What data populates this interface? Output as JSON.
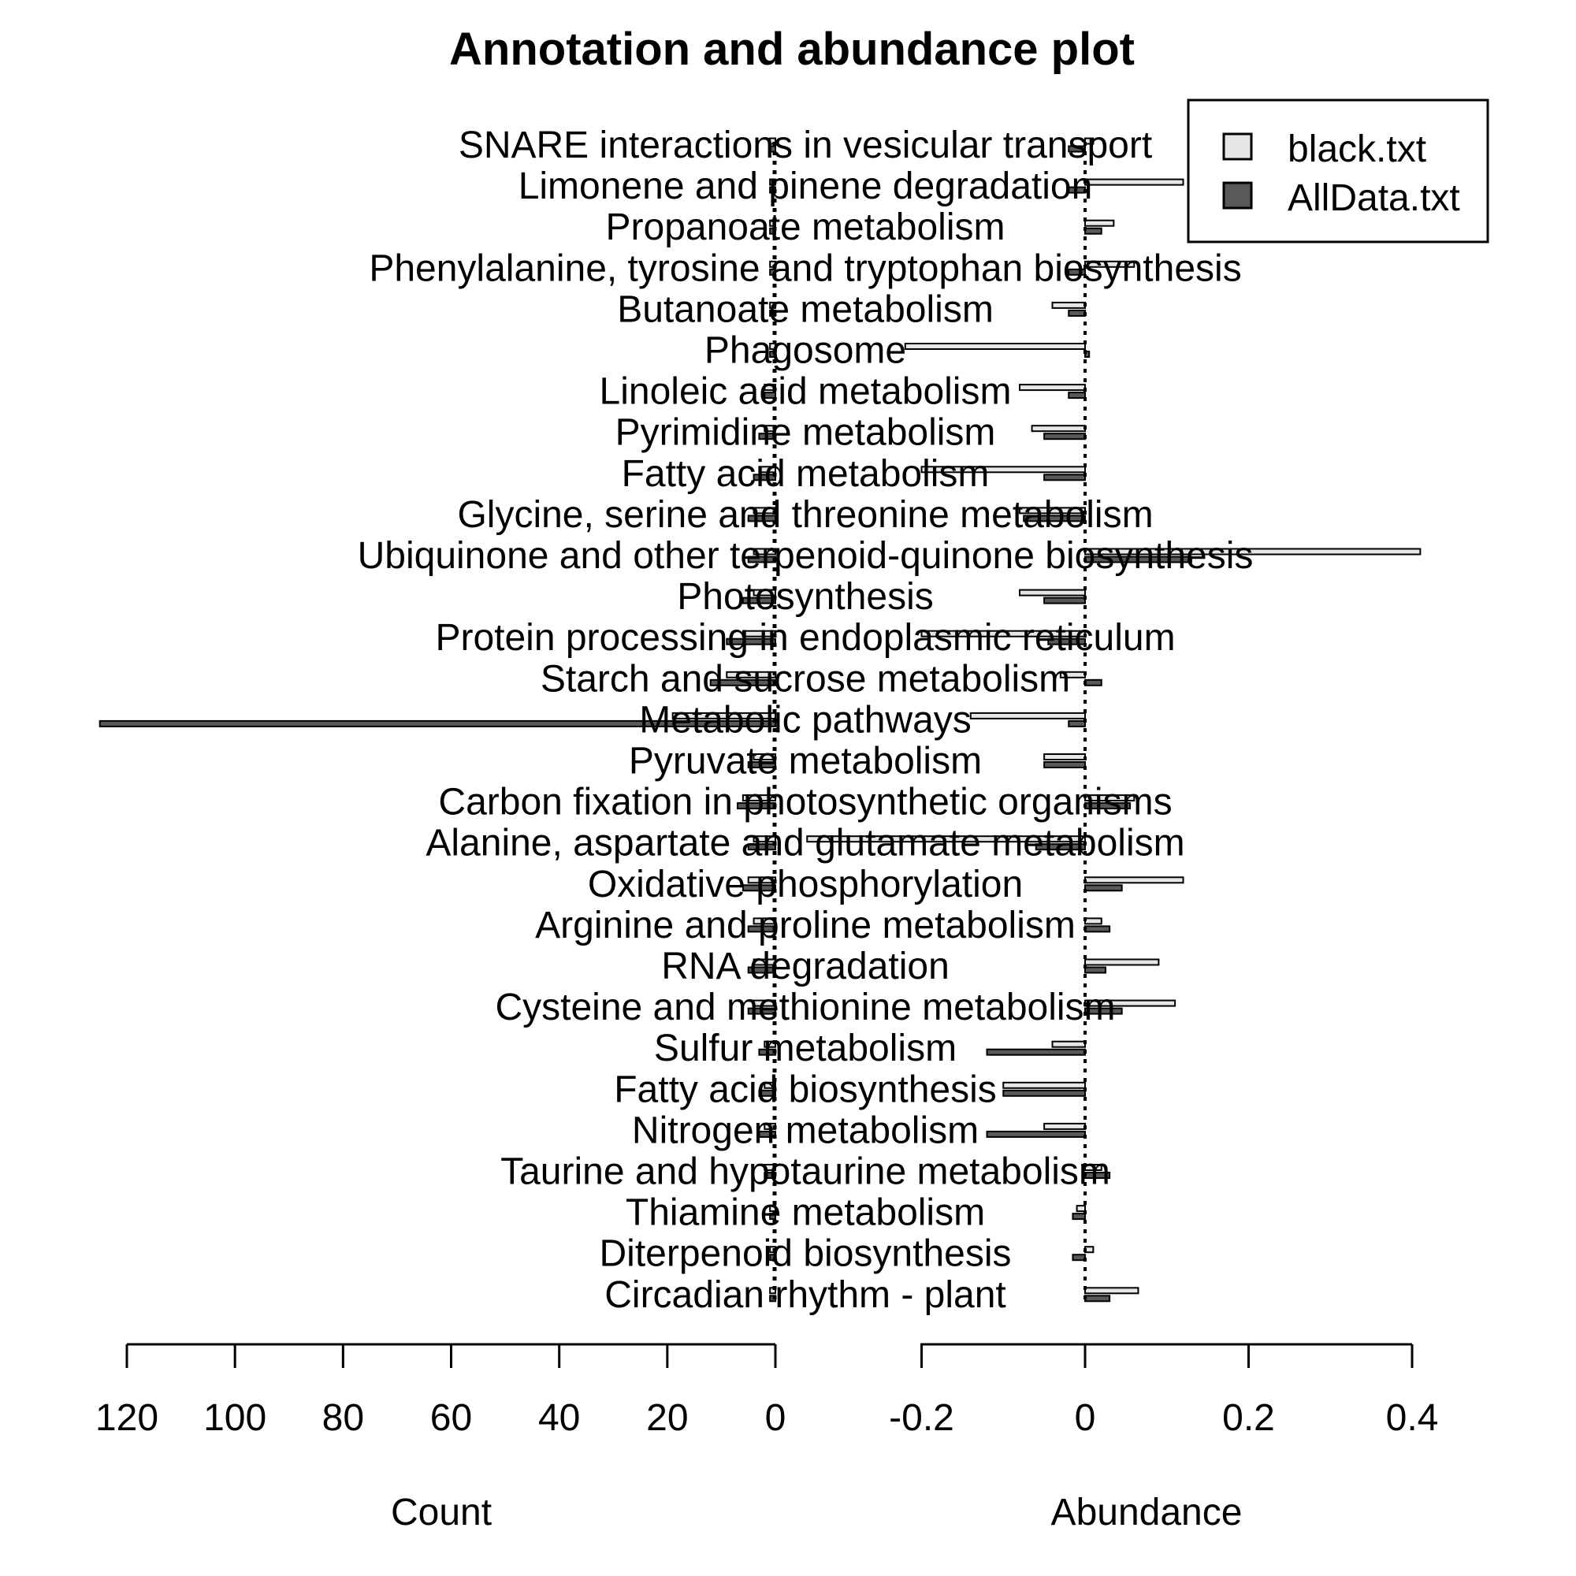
{
  "chart_data": {
    "type": "bar",
    "title": "Annotation and abundance plot",
    "categories": [
      "SNARE interactions in vesicular transport",
      "Limonene and pinene degradation",
      "Propanoate metabolism",
      "Phenylalanine, tyrosine and tryptophan biosynthesis",
      "Butanoate metabolism",
      "Phagosome",
      "Linoleic acid metabolism",
      "Pyrimidine metabolism",
      "Fatty acid metabolism",
      "Glycine, serine and threonine metabolism",
      "Ubiquinone and other terpenoid-quinone biosynthesis",
      "Photosynthesis",
      "Protein processing in endoplasmic reticulum",
      "Starch and sucrose metabolism",
      "Metabolic pathways",
      "Pyruvate metabolism",
      "Carbon fixation in photosynthetic organisms",
      "Alanine, aspartate and glutamate metabolism",
      "Oxidative phosphorylation",
      "Arginine and proline metabolism",
      "RNA degradation",
      "Cysteine and methionine metabolism",
      "Sulfur metabolism",
      "Fatty acid biosynthesis",
      "Nitrogen metabolism",
      "Taurine and hypotaurine metabolism",
      "Thiamine metabolism",
      "Diterpenoid biosynthesis",
      "Circadian rhythm - plant"
    ],
    "series": [
      {
        "name": "black.txt",
        "color": "#e6e6e6",
        "count": [
          1,
          1,
          1,
          1,
          1,
          1,
          2,
          2,
          3,
          4,
          4,
          4,
          6,
          9,
          19,
          4,
          6,
          4,
          5,
          4,
          4,
          4,
          2,
          2,
          2,
          2,
          1,
          1,
          1
        ],
        "abundance": [
          0.01,
          0.12,
          0.035,
          0.06,
          -0.04,
          -0.22,
          -0.08,
          -0.065,
          -0.2,
          -0.08,
          0.41,
          -0.08,
          -0.2,
          -0.03,
          -0.14,
          -0.05,
          0.06,
          -0.34,
          0.12,
          0.02,
          0.09,
          0.11,
          -0.04,
          -0.1,
          -0.05,
          0.02,
          -0.01,
          0.01,
          0.065
        ]
      },
      {
        "name": "AllData.txt",
        "color": "#595959",
        "count": [
          1,
          1,
          1,
          1,
          1,
          1,
          2,
          3,
          4,
          5,
          5,
          6,
          9,
          12,
          125,
          5,
          7,
          5,
          6,
          5,
          5,
          5,
          3,
          3,
          3,
          2,
          1,
          1,
          1
        ],
        "abundance": [
          -0.02,
          -0.02,
          0.02,
          -0.02,
          -0.02,
          0.005,
          -0.02,
          -0.05,
          -0.05,
          -0.075,
          0.13,
          -0.05,
          -0.045,
          0.02,
          -0.02,
          -0.05,
          0.055,
          -0.06,
          0.045,
          0.03,
          0.025,
          0.045,
          -0.12,
          -0.1,
          -0.12,
          0.03,
          -0.015,
          -0.015,
          0.03
        ]
      }
    ],
    "left_axis": {
      "label": "Count",
      "ticks": [
        "120",
        "100",
        "80",
        "60",
        "40",
        "20",
        "0"
      ],
      "lim": [
        125,
        0
      ],
      "direction": "reversed"
    },
    "right_axis": {
      "label": "Abundance",
      "ticks": [
        "-0.2",
        "0",
        "0.2",
        "0.4"
      ],
      "lim": [
        -0.2,
        0.4
      ]
    },
    "legend": {
      "position": "top-right",
      "entries": [
        "black.txt",
        "AllData.txt"
      ]
    },
    "grid": false
  }
}
